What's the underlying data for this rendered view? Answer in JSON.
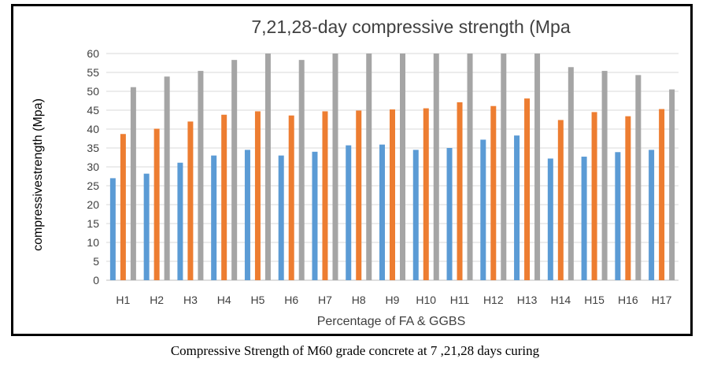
{
  "caption": "Compressive Strength of M60 grade concrete at 7 ,21,28 days curing",
  "chart_data": {
    "type": "bar",
    "title": "7,21,28-day  compressive   strength (Mpa",
    "xlabel": "Percentage of FA   & GGBS",
    "ylabel": "compressivestrength (Mpa)",
    "ylim": [
      0,
      60
    ],
    "yticks": [
      0,
      5,
      10,
      15,
      20,
      25,
      30,
      35,
      40,
      45,
      50,
      55,
      60
    ],
    "grid": true,
    "legend": "none",
    "categories": [
      "H1",
      "H2",
      "H3",
      "H4",
      "H5",
      "H6",
      "H7",
      "H8",
      "H9",
      "H10",
      "H11",
      "H12",
      "H13",
      "H14",
      "H15",
      "H16",
      "H17"
    ],
    "series": [
      {
        "color": "#5b9bd5",
        "values": [
          27.0,
          28.2,
          31.1,
          33.0,
          34.5,
          33.0,
          34.0,
          35.7,
          35.9,
          34.5,
          35.0,
          37.2,
          38.3,
          32.2,
          32.7,
          33.9,
          34.5
        ]
      },
      {
        "color": "#ed7d31",
        "values": [
          38.7,
          40.1,
          42.0,
          43.8,
          44.7,
          43.6,
          44.7,
          44.9,
          45.2,
          45.5,
          47.1,
          46.1,
          48.1,
          42.4,
          44.5,
          43.4,
          45.3
        ]
      },
      {
        "color": "#a5a5a5",
        "values": [
          51.1,
          53.9,
          55.4,
          58.3,
          60.0,
          58.3,
          60.0,
          60.0,
          60.0,
          60.0,
          60.0,
          60.0,
          60.0,
          56.4,
          55.4,
          54.3,
          50.5
        ]
      }
    ]
  }
}
